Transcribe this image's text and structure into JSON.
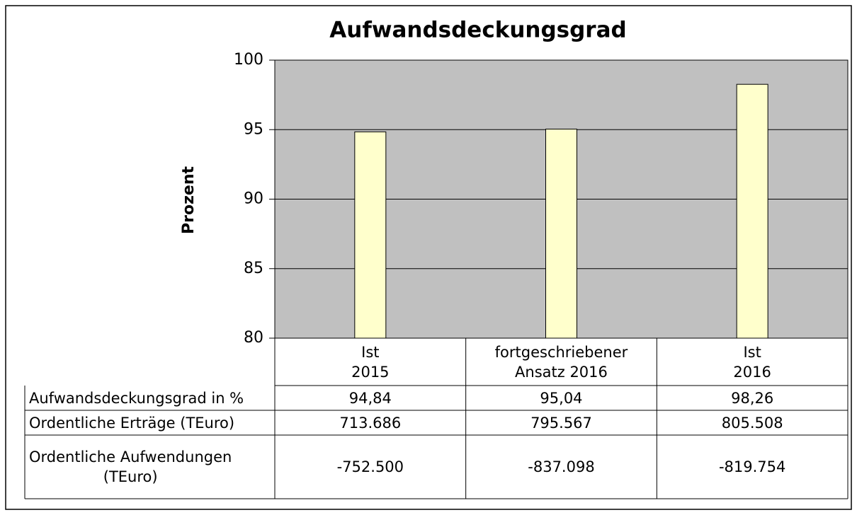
{
  "chart_data": {
    "type": "bar",
    "title": "Aufwandsdeckungsgrad",
    "y_label": "Prozent",
    "categories": [
      "Ist\n2015",
      "fortgeschriebener\nAnsatz 2016",
      "Ist\n2016"
    ],
    "values": [
      94.84,
      95.04,
      98.26
    ],
    "value_labels": [
      "94,84",
      "95,04",
      "98,26"
    ],
    "color": "#ffffcc",
    "plot_background": "#c0c0c0",
    "ylim": [
      80,
      100
    ],
    "yticks": [
      80,
      85,
      90,
      95,
      100
    ],
    "grid": true
  },
  "table": {
    "rows": [
      {
        "label": "Aufwandsdeckungsgrad in %"
      },
      {
        "label": "Ordentliche Erträge (TEuro)",
        "cells": [
          "713.686",
          "795.567",
          "805.508"
        ]
      },
      {
        "label": "Ordentliche Aufwendungen\n(TEuro)",
        "cells": [
          "-752.500",
          "-837.098",
          "-819.754"
        ]
      }
    ]
  }
}
